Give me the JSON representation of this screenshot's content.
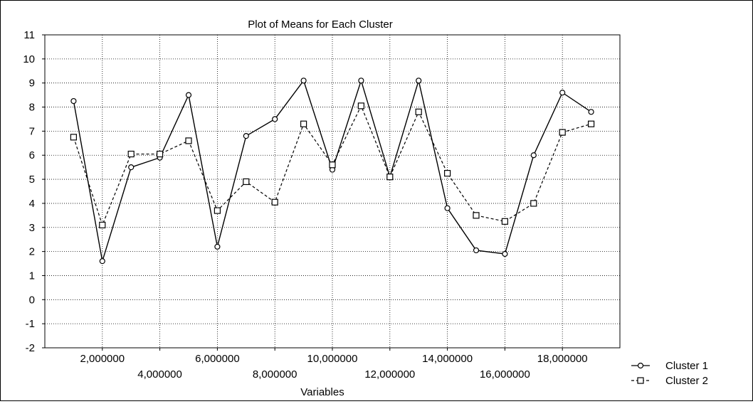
{
  "chart_data": {
    "type": "line",
    "title": "Plot of Means for Each Cluster",
    "xlabel": "Variables",
    "ylabel": "",
    "ylim": [
      -2,
      11
    ],
    "yticks": [
      "-2",
      "-1",
      "0",
      "1",
      "2",
      "3",
      "4",
      "5",
      "6",
      "7",
      "8",
      "9",
      "10",
      "11"
    ],
    "xticks": [
      {
        "value": 2,
        "label": "2,000000"
      },
      {
        "value": 4,
        "label": "4,000000"
      },
      {
        "value": 6,
        "label": "6,000000"
      },
      {
        "value": 8,
        "label": "8,000000"
      },
      {
        "value": 10,
        "label": "10,000000"
      },
      {
        "value": 12,
        "label": "12,000000"
      },
      {
        "value": 14,
        "label": "14,000000"
      },
      {
        "value": 16,
        "label": "16,000000"
      },
      {
        "value": 18,
        "label": "18,000000"
      }
    ],
    "grid": true,
    "legend_position": "bottom-right",
    "x": [
      1,
      2,
      3,
      4,
      5,
      6,
      7,
      8,
      9,
      10,
      11,
      12,
      13,
      14,
      15,
      16,
      17,
      18,
      19
    ],
    "series": [
      {
        "name": "Cluster 1",
        "marker": "circle",
        "line": "solid",
        "values": [
          8.25,
          1.6,
          5.5,
          5.9,
          8.5,
          2.2,
          6.8,
          7.5,
          9.1,
          5.4,
          9.1,
          5.1,
          9.1,
          3.8,
          2.05,
          1.9,
          6.0,
          8.6,
          7.8
        ]
      },
      {
        "name": "Cluster 2",
        "marker": "square",
        "line": "dashed",
        "values": [
          6.75,
          3.1,
          6.05,
          6.05,
          6.6,
          3.7,
          4.9,
          4.05,
          7.3,
          5.6,
          8.05,
          5.1,
          7.8,
          5.25,
          3.5,
          3.25,
          4.0,
          6.95,
          7.3
        ]
      }
    ],
    "legend_entries": [
      {
        "symbol": "-o-",
        "label": "Cluster 1"
      },
      {
        "symbol": "-□-",
        "label": "Cluster 2"
      }
    ]
  }
}
